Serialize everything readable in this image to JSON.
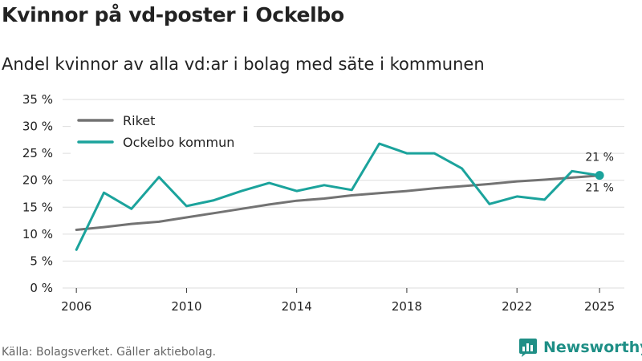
{
  "header": {
    "title": "Kvinnor på vd-poster i Ockelbo",
    "subtitle": "Andel kvinnor av alla vd:ar i bolag med säte i kommunen"
  },
  "footer": {
    "source": "Källa: Bolagsverket. Gäller aktiebolag.",
    "brand": "Newsworthy"
  },
  "colors": {
    "riket": "#737373",
    "ockelbo": "#1ba39c",
    "grid": "#dddddd",
    "brand": "#1f8f86"
  },
  "chart_data": {
    "type": "line",
    "title": "Kvinnor på vd-poster i Ockelbo",
    "subtitle": "Andel kvinnor av alla vd:ar i bolag med säte i kommunen",
    "xlabel": "",
    "ylabel": "",
    "x": [
      2006,
      2007,
      2008,
      2009,
      2010,
      2011,
      2012,
      2013,
      2014,
      2015,
      2016,
      2017,
      2018,
      2019,
      2020,
      2021,
      2022,
      2023,
      2024,
      2025
    ],
    "series": [
      {
        "name": "Riket",
        "color": "#737373",
        "values": [
          10.8,
          11.3,
          11.9,
          12.3,
          13.1,
          13.9,
          14.7,
          15.5,
          16.2,
          16.6,
          17.2,
          17.6,
          18.0,
          18.5,
          18.9,
          19.3,
          19.8,
          20.1,
          20.5,
          20.9
        ]
      },
      {
        "name": "Ockelbo kommun",
        "color": "#1ba39c",
        "values": [
          7.1,
          17.7,
          14.7,
          20.6,
          15.2,
          16.3,
          18.0,
          19.5,
          18.0,
          19.1,
          18.2,
          26.8,
          25.0,
          25.0,
          22.2,
          15.6,
          17.0,
          16.4,
          21.7,
          20.9
        ]
      }
    ],
    "ylim": [
      0,
      35
    ],
    "yticks": [
      0,
      5,
      10,
      15,
      20,
      25,
      30,
      35
    ],
    "ytick_labels": [
      "0 %",
      "5 %",
      "10 %",
      "15 %",
      "20 %",
      "25 %",
      "30 %",
      "35 %"
    ],
    "xticks": [
      2006,
      2010,
      2014,
      2018,
      2022,
      2025
    ],
    "xtick_labels": [
      "2006",
      "2010",
      "2014",
      "2018",
      "2022",
      "2025"
    ],
    "end_labels": [
      {
        "series": "Ockelbo kommun",
        "text": "21 %",
        "placement": "above"
      },
      {
        "series": "Riket",
        "text": "21 %",
        "placement": "below"
      }
    ],
    "legend": {
      "placement": "top-left",
      "entries": [
        "Riket",
        "Ockelbo kommun"
      ]
    },
    "grid": true
  }
}
